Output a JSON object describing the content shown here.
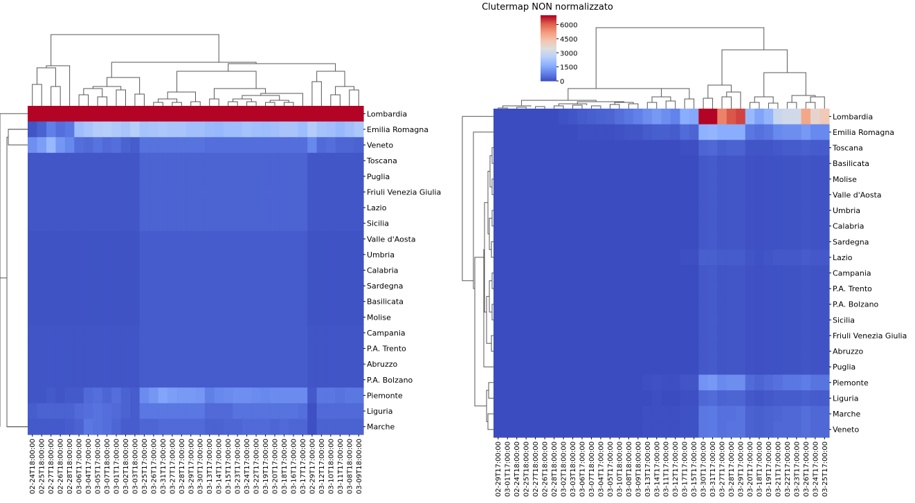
{
  "chart_data": [
    {
      "type": "heatmap",
      "title": "",
      "rows": [
        "Lombardia",
        "Emilia Romagna",
        "Veneto",
        "Toscana",
        "Puglia",
        "Friuli Venezia Giulia",
        "Lazio",
        "Sicilia",
        "Valle d'Aosta",
        "Umbria",
        "Calabria",
        "Sardegna",
        "Basilicata",
        "Molise",
        "Campania",
        "P.A. Trento",
        "Abruzzo",
        "P.A. Bolzano",
        "Piemonte",
        "Liguria",
        "Marche"
      ],
      "columns": [
        "2020-02-24T18:00:00",
        "2020-02-25T18:00:00",
        "2020-02-27T18:00:00",
        "2020-02-26T18:00:00",
        "2020-02-28T18:00:00",
        "2020-03-06T17:00:00",
        "2020-03-04T17:00:00",
        "2020-03-05T17:00:00",
        "2020-03-07T18:00:00",
        "2020-03-01T17:00:00",
        "2020-03-02T18:00:00",
        "2020-03-03T18:00:00",
        "2020-03-25T17:00:00",
        "2020-03-26T17:00:00",
        "2020-03-31T17:00:00",
        "2020-03-27T17:00:00",
        "2020-03-28T17:00:00",
        "2020-03-29T17:00:00",
        "2020-03-30T17:00:00",
        "2020-03-13T17:00:00",
        "2020-03-14T17:00:00",
        "2020-03-15T17:00:00",
        "2020-03-23T17:00:00",
        "2020-03-24T17:00:00",
        "2020-03-22T17:00:00",
        "2020-03-19T17:00:00",
        "2020-03-20T17:00:00",
        "2020-03-18T17:00:00",
        "2020-03-16T17:00:00",
        "2020-03-17T17:00:00",
        "2020-02-29T17:00:00",
        "2020-03-12T17:00:00",
        "2020-03-10T18:00:00",
        "2020-03-11T17:00:00",
        "2020-03-08T18:00:00",
        "2020-03-09T18:00:00"
      ],
      "row_bands": [
        [
          1.0
        ],
        [
          0.02,
          0.05,
          0.12,
          0.08,
          0.1,
          0.3,
          0.33,
          0.36,
          0.37,
          0.35,
          0.33,
          0.37,
          0.32,
          0.33,
          0.34,
          0.33,
          0.33,
          0.31,
          0.31,
          0.29,
          0.28,
          0.3,
          0.3,
          0.32,
          0.31,
          0.3,
          0.31,
          0.33,
          0.33,
          0.3,
          0.36,
          0.32,
          0.31,
          0.28,
          0.31,
          0.34
        ],
        [
          0.16,
          0.2,
          0.28,
          0.18,
          0.14,
          0.08,
          0.07,
          0.09,
          0.07,
          0.08,
          0.05,
          0.04,
          0.09,
          0.09,
          0.09,
          0.09,
          0.09,
          0.09,
          0.09,
          0.08,
          0.08,
          0.08,
          0.08,
          0.08,
          0.08,
          0.08,
          0.08,
          0.08,
          0.08,
          0.08,
          0.14,
          0.07,
          0.08,
          0.06,
          0.06,
          0.05
        ],
        [
          0.02
        ],
        [
          0.02
        ],
        [
          0.02
        ],
        [
          0.02
        ],
        [
          0.01
        ],
        [
          0.01
        ],
        [
          0.01
        ],
        [
          0.01
        ],
        [
          0.01
        ],
        [
          0.01
        ],
        [
          0.01
        ],
        [
          0.02
        ],
        [
          0.02
        ],
        [
          0.02
        ],
        [
          0.02
        ],
        [
          0.02,
          0.02,
          0.03,
          0.02,
          0.03,
          0.03,
          0.07,
          0.08,
          0.06,
          0.08,
          0.05,
          0.04,
          0.15,
          0.18,
          0.22,
          0.2,
          0.19,
          0.19,
          0.18,
          0.12,
          0.14,
          0.15,
          0.16,
          0.16,
          0.15,
          0.14,
          0.15,
          0.15,
          0.15,
          0.15,
          0.03,
          0.1,
          0.1,
          0.09,
          0.1,
          0.1
        ],
        [
          0.04,
          0.05,
          0.05,
          0.05,
          0.05,
          0.07,
          0.08,
          0.09,
          0.08,
          0.07,
          0.05,
          0.04,
          0.1,
          0.1,
          0.1,
          0.1,
          0.1,
          0.1,
          0.1,
          0.07,
          0.07,
          0.07,
          0.09,
          0.09,
          0.09,
          0.09,
          0.09,
          0.09,
          0.09,
          0.08,
          0.01,
          0.07,
          0.07,
          0.07,
          0.07,
          0.07
        ],
        [
          0.03,
          0.03,
          0.03,
          0.03,
          0.04,
          0.05,
          0.1,
          0.09,
          0.08,
          0.06,
          0.04,
          0.04,
          0.06,
          0.06,
          0.07,
          0.07,
          0.07,
          0.07,
          0.07,
          0.05,
          0.05,
          0.06,
          0.06,
          0.07,
          0.07,
          0.07,
          0.06,
          0.07,
          0.06,
          0.06,
          0.01,
          0.05,
          0.05,
          0.05,
          0.05,
          0.05
        ]
      ]
    },
    {
      "type": "heatmap",
      "title": "Clutermap NON normalizzato",
      "colorbar": {
        "ticks": [
          0,
          1500,
          3000,
          4500,
          6000
        ],
        "vmax": 7000,
        "colormap": "coolwarm"
      },
      "rows": [
        "Lombardia",
        "Emilia Romagna",
        "Toscana",
        "Basilicata",
        "Molise",
        "Valle d'Aosta",
        "Umbria",
        "Calabria",
        "Sardegna",
        "Lazio",
        "Campania",
        "P.A. Trento",
        "P.A. Bolzano",
        "Sicilia",
        "Friuli Venezia Giulia",
        "Abruzzo",
        "Puglia",
        "Piemonte",
        "Liguria",
        "Marche",
        "Veneto"
      ],
      "columns": [
        "2020-02-29T17:00:00",
        "2020-03-01T17:00:00",
        "2020-02-24T18:00:00",
        "2020-02-25T18:00:00",
        "2020-02-27T18:00:00",
        "2020-02-26T18:00:00",
        "2020-02-28T18:00:00",
        "2020-03-02T18:00:00",
        "2020-03-03T18:00:00",
        "2020-03-06T17:00:00",
        "2020-03-07T18:00:00",
        "2020-03-04T17:00:00",
        "2020-03-05T17:00:00",
        "2020-03-10T18:00:00",
        "2020-03-08T18:00:00",
        "2020-03-09T18:00:00",
        "2020-03-13T17:00:00",
        "2020-03-14T17:00:00",
        "2020-03-11T17:00:00",
        "2020-03-12T17:00:00",
        "2020-03-17T17:00:00",
        "2020-03-15T17:00:00",
        "2020-03-30T17:00:00",
        "2020-03-31T17:00:00",
        "2020-03-27T17:00:00",
        "2020-03-28T17:00:00",
        "2020-03-29T17:00:00",
        "2020-03-20T17:00:00",
        "2020-03-18T17:00:00",
        "2020-03-19T17:00:00",
        "2020-03-21T17:00:00",
        "2020-03-22T17:00:00",
        "2020-03-23T17:00:00",
        "2020-03-26T17:00:00",
        "2020-03-24T17:00:00",
        "2020-03-25T17:00:00"
      ],
      "lombardia": [
        0,
        0,
        0,
        0,
        0,
        0,
        0,
        100,
        150,
        250,
        300,
        350,
        400,
        550,
        700,
        850,
        1100,
        1300,
        1100,
        900,
        1700,
        1600,
        7000,
        7600,
        5600,
        6200,
        6400,
        2000,
        1500,
        1900,
        3000,
        3200,
        3200,
        5000,
        3800,
        4200
      ],
      "emilia_romagna": [
        0,
        0,
        0,
        0,
        0,
        0,
        0,
        0,
        0,
        50,
        50,
        50,
        50,
        100,
        150,
        150,
        250,
        300,
        300,
        250,
        500,
        400,
        1800,
        1900,
        1700,
        1700,
        1700,
        700,
        600,
        700,
        1000,
        1100,
        1100,
        1300,
        1000,
        1000
      ],
      "piemonte": [
        0,
        0,
        0,
        0,
        0,
        0,
        0,
        0,
        0,
        0,
        0,
        0,
        0,
        0,
        0,
        0,
        50,
        100,
        50,
        50,
        150,
        150,
        1200,
        1300,
        1000,
        1100,
        1100,
        500,
        400,
        500,
        600,
        700,
        700,
        800,
        650,
        650
      ],
      "marche": [
        0,
        0,
        0,
        0,
        0,
        0,
        0,
        0,
        0,
        0,
        0,
        0,
        0,
        0,
        0,
        0,
        50,
        50,
        50,
        50,
        100,
        100,
        700,
        750,
        600,
        600,
        650,
        350,
        300,
        350,
        400,
        450,
        450,
        550,
        450,
        450
      ],
      "veneto": [
        0,
        0,
        0,
        0,
        0,
        0,
        0,
        0,
        0,
        0,
        0,
        0,
        0,
        0,
        0,
        0,
        50,
        50,
        50,
        50,
        100,
        100,
        700,
        750,
        600,
        650,
        650,
        350,
        300,
        350,
        450,
        450,
        450,
        550,
        450,
        450
      ],
      "liguria": [
        0,
        0,
        0,
        0,
        0,
        0,
        0,
        0,
        0,
        0,
        0,
        0,
        0,
        0,
        0,
        0,
        0,
        50,
        0,
        0,
        50,
        50,
        450,
        500,
        350,
        400,
        400,
        200,
        150,
        200,
        250,
        250,
        250,
        300,
        250,
        250
      ],
      "toscana": [
        0,
        0,
        0,
        0,
        0,
        0,
        0,
        0,
        0,
        0,
        0,
        0,
        0,
        0,
        0,
        0,
        0,
        0,
        0,
        0,
        50,
        50,
        400,
        450,
        300,
        350,
        350,
        150,
        150,
        150,
        200,
        250,
        250,
        300,
        250,
        250
      ],
      "lazio": [
        0,
        0,
        0,
        0,
        0,
        0,
        0,
        0,
        0,
        0,
        0,
        0,
        0,
        0,
        0,
        0,
        0,
        0,
        0,
        0,
        50,
        50,
        300,
        300,
        250,
        250,
        250,
        150,
        100,
        150,
        200,
        200,
        200,
        250,
        200,
        200
      ],
      "other": [
        0,
        0,
        0,
        0,
        0,
        0,
        0,
        0,
        0,
        0,
        0,
        0,
        0,
        0,
        0,
        0,
        0,
        0,
        0,
        0,
        0,
        0,
        200,
        220,
        150,
        170,
        170,
        80,
        60,
        80,
        100,
        110,
        110,
        140,
        110,
        110
      ]
    }
  ]
}
